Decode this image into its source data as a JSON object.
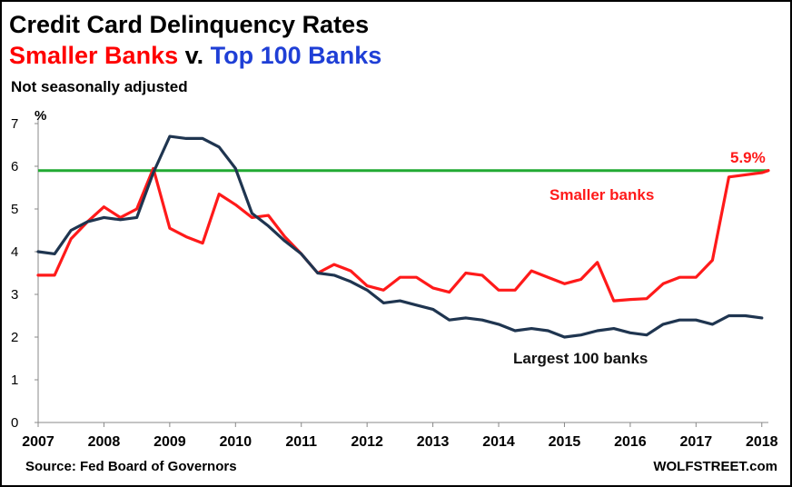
{
  "header": {
    "title": "Credit Card Delinquency Rates",
    "subtitle_part1": "Smaller Banks",
    "subtitle_part2": "v.",
    "subtitle_part3": "Top 100 Banks",
    "note": "Not seasonally adjusted"
  },
  "footer": {
    "source": "Source: Fed Board of Governors",
    "brand": "WOLFSTREET.com"
  },
  "colors": {
    "smaller": "#ff1a1a",
    "largest": "#1f3550",
    "reference": "#22aa33",
    "subtitle_red": "#ff0000",
    "subtitle_blue": "#1f3fd6"
  },
  "chart_data": {
    "type": "line",
    "title": "Credit Card Delinquency Rates",
    "ylabel": "%",
    "xlabel": "",
    "ylim": [
      0,
      7
    ],
    "yticks": [
      0,
      1,
      2,
      3,
      4,
      5,
      6,
      7
    ],
    "xlim": [
      2007,
      2018.1
    ],
    "xticks": [
      2007,
      2008,
      2009,
      2010,
      2011,
      2012,
      2013,
      2014,
      2015,
      2016,
      2017,
      2018
    ],
    "reference_line": {
      "y": 5.9,
      "label": "5.9%"
    },
    "series": [
      {
        "name": "Smaller banks",
        "label": "Smaller banks",
        "color": "#ff1a1a",
        "x": [
          2007.0,
          2007.25,
          2007.5,
          2007.75,
          2008.0,
          2008.25,
          2008.5,
          2008.75,
          2009.0,
          2009.25,
          2009.5,
          2009.75,
          2010.0,
          2010.25,
          2010.5,
          2010.75,
          2011.0,
          2011.25,
          2011.5,
          2011.75,
          2012.0,
          2012.25,
          2012.5,
          2012.75,
          2013.0,
          2013.25,
          2013.5,
          2013.75,
          2014.0,
          2014.25,
          2014.5,
          2014.75,
          2015.0,
          2015.25,
          2015.5,
          2015.75,
          2016.0,
          2016.25,
          2016.5,
          2016.75,
          2017.0,
          2017.25,
          2017.5,
          2017.75,
          2018.0,
          2018.1
        ],
        "values": [
          3.45,
          3.45,
          4.3,
          4.7,
          5.05,
          4.8,
          5.0,
          5.95,
          4.55,
          4.35,
          4.2,
          5.35,
          5.1,
          4.8,
          4.85,
          4.35,
          3.95,
          3.5,
          3.7,
          3.55,
          3.2,
          3.1,
          3.4,
          3.4,
          3.15,
          3.05,
          3.5,
          3.45,
          3.1,
          3.1,
          3.55,
          3.4,
          3.25,
          3.35,
          3.75,
          2.85,
          2.88,
          2.9,
          3.25,
          3.4,
          3.4,
          3.8,
          5.75,
          5.8,
          5.85,
          5.9
        ]
      },
      {
        "name": "Largest 100 banks",
        "label": "Largest 100 banks",
        "color": "#1f3550",
        "x": [
          2007.0,
          2007.25,
          2007.5,
          2007.75,
          2008.0,
          2008.25,
          2008.5,
          2008.75,
          2009.0,
          2009.25,
          2009.5,
          2009.75,
          2010.0,
          2010.25,
          2010.5,
          2010.75,
          2011.0,
          2011.25,
          2011.5,
          2011.75,
          2012.0,
          2012.25,
          2012.5,
          2012.75,
          2013.0,
          2013.25,
          2013.5,
          2013.75,
          2014.0,
          2014.25,
          2014.5,
          2014.75,
          2015.0,
          2015.25,
          2015.5,
          2015.75,
          2016.0,
          2016.25,
          2016.5,
          2016.75,
          2017.0,
          2017.25,
          2017.5,
          2017.75,
          2018.0
        ],
        "values": [
          4.0,
          3.95,
          4.5,
          4.7,
          4.8,
          4.75,
          4.8,
          5.85,
          6.7,
          6.65,
          6.65,
          6.45,
          5.95,
          4.9,
          4.6,
          4.25,
          3.95,
          3.5,
          3.45,
          3.3,
          3.1,
          2.8,
          2.85,
          2.75,
          2.65,
          2.4,
          2.45,
          2.4,
          2.3,
          2.15,
          2.2,
          2.15,
          2.0,
          2.05,
          2.15,
          2.2,
          2.1,
          2.05,
          2.3,
          2.4,
          2.4,
          2.3,
          2.5,
          2.5,
          2.45
        ]
      }
    ]
  }
}
